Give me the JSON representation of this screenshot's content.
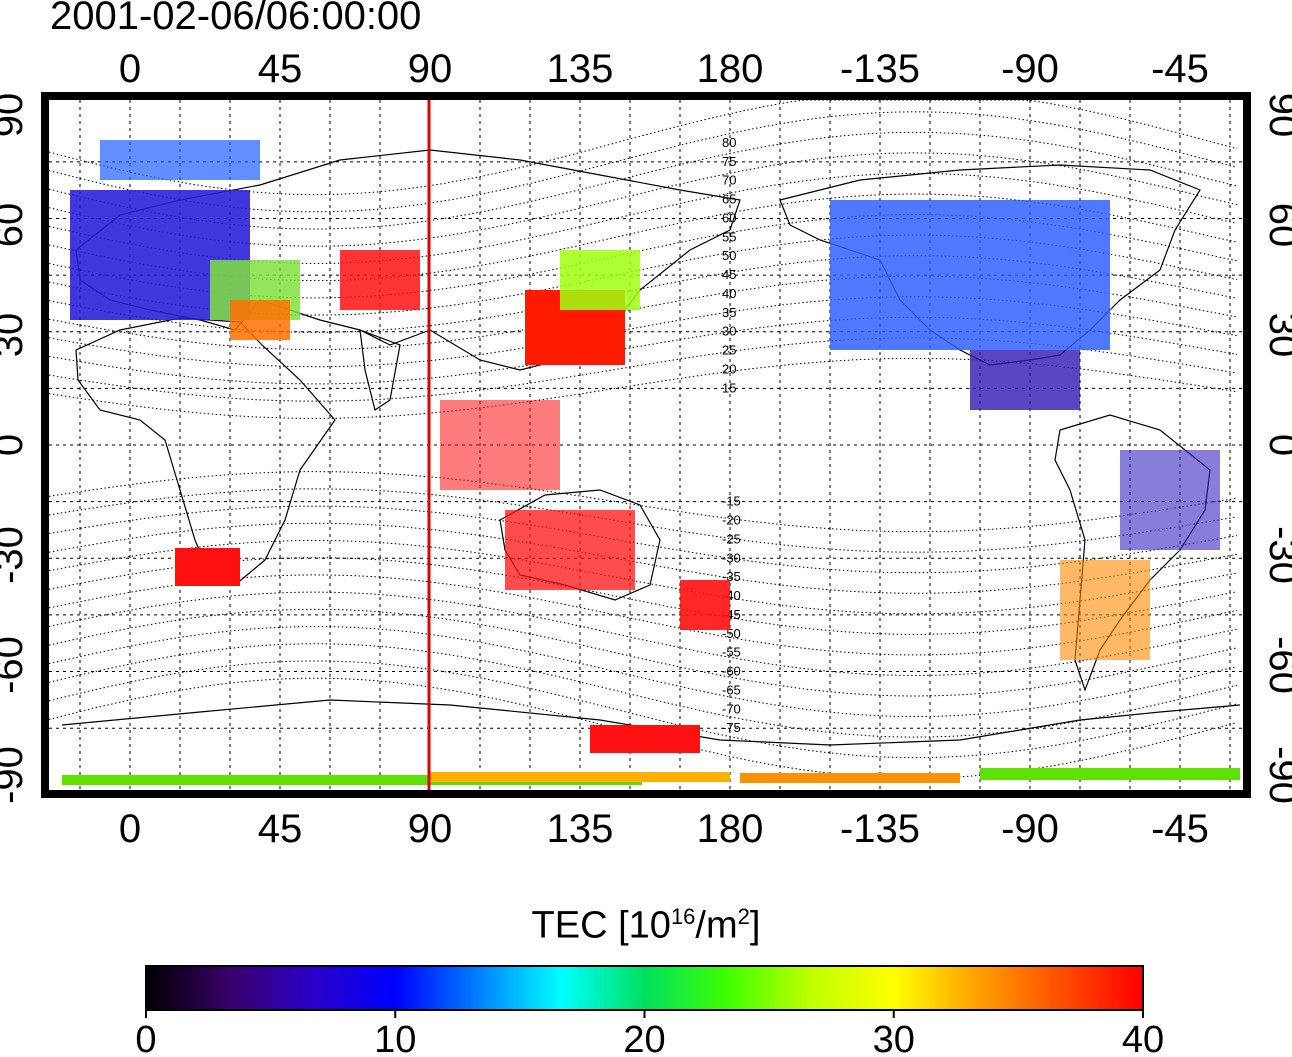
{
  "timestamp": "2001-02-06/06:00:00",
  "map": {
    "x_ticks_top": [
      "0",
      "45",
      "90",
      "135",
      "180",
      "-135",
      "-90",
      "-45"
    ],
    "x_ticks_bottom": [
      "0",
      "45",
      "90",
      "135",
      "180",
      "-135",
      "-90",
      "-45"
    ],
    "y_ticks_left": [
      "90",
      "60",
      "30",
      "0",
      "-30",
      "-60",
      "-90"
    ],
    "y_ticks_right": [
      "90",
      "60",
      "30",
      "0",
      "-30",
      "-60",
      "-90"
    ],
    "contour_labels": [
      "80",
      "75",
      "70",
      "65",
      "60",
      "55",
      "50",
      "45",
      "40",
      "35",
      "30",
      "25",
      "20",
      "15",
      "-15",
      "-20",
      "-25",
      "-30",
      "-35",
      "-40",
      "-45",
      "-50",
      "-55",
      "-60",
      "-65",
      "-70",
      "-75"
    ],
    "marker_meridian_lon": 90,
    "colors": {
      "marker": "#e00000",
      "frame": "#000000",
      "grid": "#000000"
    }
  },
  "colorbar": {
    "title_prefix": "TEC  [10",
    "title_exp1": "16",
    "title_mid": "/m",
    "title_exp2": "2",
    "title_suffix": "]",
    "ticks": [
      "0",
      "10",
      "20",
      "30",
      "40"
    ],
    "min": 0,
    "max": 40,
    "colormap": [
      "#000000",
      "#3a006a",
      "#2a00c8",
      "#0000ff",
      "#0080ff",
      "#00ffff",
      "#00e060",
      "#40ff00",
      "#c0ff00",
      "#ffff00",
      "#ffa000",
      "#ff5000",
      "#ff0000"
    ]
  }
}
